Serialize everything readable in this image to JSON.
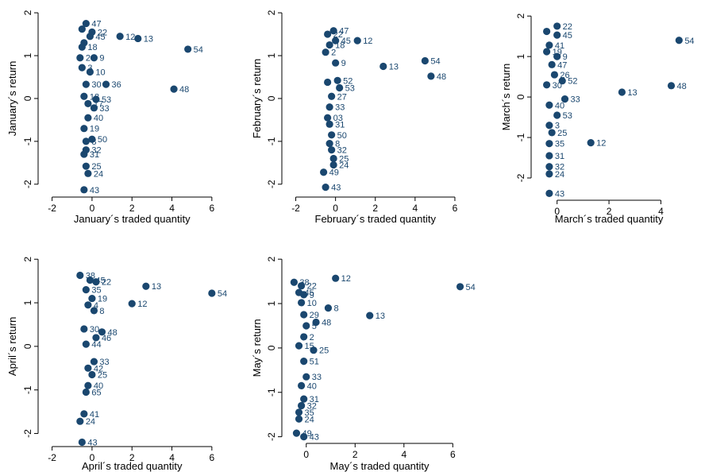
{
  "style": {
    "marker_color": "#1a476f",
    "label_color": "#1a476f",
    "axis_color": "#000000",
    "background": "#ffffff"
  },
  "chart_data": [
    {
      "type": "scatter",
      "xlabel": "January´s traded quantity",
      "ylabel": "January´s return",
      "xlim": [
        -2.7,
        7.0
      ],
      "ylim": [
        -2.3,
        2.15
      ],
      "xticks": [
        -2,
        0,
        2,
        4,
        6
      ],
      "yticks": [
        -2,
        -1,
        0,
        1,
        2
      ],
      "points": [
        {
          "x": -0.3,
          "y": 1.75,
          "label": "47"
        },
        {
          "x": 0.0,
          "y": 1.55,
          "label": "22"
        },
        {
          "x": -0.5,
          "y": 1.62,
          "label": ""
        },
        {
          "x": -0.1,
          "y": 1.45,
          "label": "45"
        },
        {
          "x": -0.4,
          "y": 1.3,
          "label": ""
        },
        {
          "x": -0.5,
          "y": 1.2,
          "label": "18"
        },
        {
          "x": 1.4,
          "y": 1.45,
          "label": "12"
        },
        {
          "x": 2.3,
          "y": 1.4,
          "label": "13"
        },
        {
          "x": 4.8,
          "y": 1.15,
          "label": "54"
        },
        {
          "x": -0.6,
          "y": 0.95,
          "label": "2"
        },
        {
          "x": 0.1,
          "y": 0.95,
          "label": "9"
        },
        {
          "x": -0.5,
          "y": 0.72,
          "label": "3"
        },
        {
          "x": -0.1,
          "y": 0.62,
          "label": "10"
        },
        {
          "x": -0.3,
          "y": 0.33,
          "label": "30"
        },
        {
          "x": 0.7,
          "y": 0.33,
          "label": "36"
        },
        {
          "x": 4.1,
          "y": 0.22,
          "label": "48"
        },
        {
          "x": -0.4,
          "y": 0.05,
          "label": "18"
        },
        {
          "x": 0.2,
          "y": -0.02,
          "label": "53"
        },
        {
          "x": -0.2,
          "y": -0.12,
          "label": "17"
        },
        {
          "x": 0.1,
          "y": -0.22,
          "label": "33"
        },
        {
          "x": -0.2,
          "y": -0.45,
          "label": "40"
        },
        {
          "x": -0.4,
          "y": -0.7,
          "label": "19"
        },
        {
          "x": 0.0,
          "y": -0.95,
          "label": "50"
        },
        {
          "x": -0.3,
          "y": -1.0,
          "label": "8"
        },
        {
          "x": -0.3,
          "y": -1.2,
          "label": "32"
        },
        {
          "x": -0.4,
          "y": -1.3,
          "label": "31"
        },
        {
          "x": -0.3,
          "y": -1.58,
          "label": "25"
        },
        {
          "x": -0.2,
          "y": -1.75,
          "label": "24"
        },
        {
          "x": -0.4,
          "y": -2.13,
          "label": "43"
        }
      ]
    },
    {
      "type": "scatter",
      "xlabel": "February´s traded quantity",
      "ylabel": "February´s return",
      "xlim": [
        -2.7,
        7.0
      ],
      "ylim": [
        -2.3,
        2.15
      ],
      "xticks": [
        -2,
        0,
        2,
        4,
        6
      ],
      "yticks": [
        -2,
        -1,
        0,
        1,
        2
      ],
      "points": [
        {
          "x": -0.1,
          "y": 1.58,
          "label": "47"
        },
        {
          "x": -0.4,
          "y": 1.5,
          "label": "22"
        },
        {
          "x": 0.0,
          "y": 1.35,
          "label": "45"
        },
        {
          "x": -0.3,
          "y": 1.25,
          "label": "18"
        },
        {
          "x": 1.1,
          "y": 1.35,
          "label": "12"
        },
        {
          "x": -0.5,
          "y": 1.08,
          "label": "2"
        },
        {
          "x": 0.0,
          "y": 0.83,
          "label": "9"
        },
        {
          "x": 2.4,
          "y": 0.75,
          "label": "13"
        },
        {
          "x": 4.5,
          "y": 0.88,
          "label": "54"
        },
        {
          "x": 4.8,
          "y": 0.52,
          "label": "48"
        },
        {
          "x": 0.1,
          "y": 0.42,
          "label": "52"
        },
        {
          "x": -0.4,
          "y": 0.38,
          "label": ""
        },
        {
          "x": 0.2,
          "y": 0.25,
          "label": "53"
        },
        {
          "x": -0.2,
          "y": 0.05,
          "label": "27"
        },
        {
          "x": -0.3,
          "y": -0.2,
          "label": "33"
        },
        {
          "x": -0.4,
          "y": -0.45,
          "label": "03"
        },
        {
          "x": -0.3,
          "y": -0.6,
          "label": "31"
        },
        {
          "x": -0.2,
          "y": -0.85,
          "label": "50"
        },
        {
          "x": -0.3,
          "y": -1.05,
          "label": "8"
        },
        {
          "x": -0.2,
          "y": -1.2,
          "label": "32"
        },
        {
          "x": -0.1,
          "y": -1.4,
          "label": "25"
        },
        {
          "x": -0.1,
          "y": -1.55,
          "label": "24"
        },
        {
          "x": -0.6,
          "y": -1.72,
          "label": "49"
        },
        {
          "x": -0.5,
          "y": -2.07,
          "label": "43"
        }
      ]
    },
    {
      "type": "scatter",
      "xlabel": "March´s traded quantity",
      "ylabel": "March´s return",
      "xlim": [
        -1.0,
        5.7
      ],
      "ylim": [
        -2.55,
        2.2
      ],
      "xticks": [
        0,
        2,
        4
      ],
      "yticks": [
        -2,
        -1,
        0,
        1,
        2
      ],
      "points": [
        {
          "x": 0.0,
          "y": 1.75,
          "label": "22"
        },
        {
          "x": -0.4,
          "y": 1.62,
          "label": ""
        },
        {
          "x": 0.0,
          "y": 1.53,
          "label": "45"
        },
        {
          "x": -0.3,
          "y": 1.28,
          "label": "41"
        },
        {
          "x": -0.4,
          "y": 1.12,
          "label": "19"
        },
        {
          "x": 0.0,
          "y": 1.0,
          "label": "9"
        },
        {
          "x": -0.2,
          "y": 0.8,
          "label": "47"
        },
        {
          "x": 4.7,
          "y": 1.4,
          "label": "54"
        },
        {
          "x": -0.1,
          "y": 0.55,
          "label": "26"
        },
        {
          "x": 0.2,
          "y": 0.4,
          "label": "52"
        },
        {
          "x": -0.4,
          "y": 0.3,
          "label": "30"
        },
        {
          "x": 4.4,
          "y": 0.28,
          "label": "48"
        },
        {
          "x": 2.5,
          "y": 0.12,
          "label": "13"
        },
        {
          "x": 0.3,
          "y": -0.05,
          "label": "33"
        },
        {
          "x": -0.3,
          "y": -0.2,
          "label": "40"
        },
        {
          "x": 0.0,
          "y": -0.45,
          "label": "53"
        },
        {
          "x": -0.3,
          "y": -0.7,
          "label": "3"
        },
        {
          "x": -0.2,
          "y": -0.88,
          "label": "25"
        },
        {
          "x": -0.3,
          "y": -1.15,
          "label": "35"
        },
        {
          "x": 1.3,
          "y": -1.13,
          "label": "12"
        },
        {
          "x": -0.3,
          "y": -1.45,
          "label": "31"
        },
        {
          "x": -0.3,
          "y": -1.72,
          "label": "32"
        },
        {
          "x": -0.3,
          "y": -1.9,
          "label": "24"
        },
        {
          "x": -0.3,
          "y": -2.38,
          "label": "43"
        }
      ]
    },
    {
      "type": "scatter",
      "xlabel": "April´s traded quantity",
      "ylabel": "April´s return",
      "xlim": [
        -2.7,
        7.0
      ],
      "ylim": [
        -2.3,
        2.15
      ],
      "xticks": [
        -2,
        0,
        2,
        4,
        6
      ],
      "yticks": [
        -2,
        -1,
        0,
        1,
        2
      ],
      "points": [
        {
          "x": -0.6,
          "y": 1.63,
          "label": "38"
        },
        {
          "x": -0.1,
          "y": 1.52,
          "label": "45"
        },
        {
          "x": 0.2,
          "y": 1.48,
          "label": "22"
        },
        {
          "x": -0.3,
          "y": 1.3,
          "label": "35"
        },
        {
          "x": 2.7,
          "y": 1.38,
          "label": "13"
        },
        {
          "x": 6.0,
          "y": 1.22,
          "label": "54"
        },
        {
          "x": 0.0,
          "y": 1.1,
          "label": "19"
        },
        {
          "x": 2.0,
          "y": 0.98,
          "label": "12"
        },
        {
          "x": -0.2,
          "y": 0.95,
          "label": "4"
        },
        {
          "x": 0.1,
          "y": 0.82,
          "label": "8"
        },
        {
          "x": -0.4,
          "y": 0.4,
          "label": "30"
        },
        {
          "x": 0.5,
          "y": 0.33,
          "label": "48"
        },
        {
          "x": 0.2,
          "y": 0.2,
          "label": "46"
        },
        {
          "x": -0.3,
          "y": 0.05,
          "label": "44"
        },
        {
          "x": 0.1,
          "y": -0.35,
          "label": "33"
        },
        {
          "x": -0.2,
          "y": -0.5,
          "label": "42"
        },
        {
          "x": 0.0,
          "y": -0.65,
          "label": "25"
        },
        {
          "x": -0.2,
          "y": -0.9,
          "label": "40"
        },
        {
          "x": -0.3,
          "y": -1.05,
          "label": "65"
        },
        {
          "x": -0.4,
          "y": -1.55,
          "label": "41"
        },
        {
          "x": -0.6,
          "y": -1.72,
          "label": "24"
        },
        {
          "x": -0.5,
          "y": -2.2,
          "label": "43"
        }
      ]
    },
    {
      "type": "scatter",
      "xlabel": "May´s traded quantity",
      "ylabel": "May´s return",
      "xlim": [
        -1.0,
        6.9
      ],
      "ylim": [
        -2.15,
        2.2
      ],
      "xticks": [
        0,
        2,
        4,
        6
      ],
      "yticks": [
        -2,
        -1,
        0,
        1,
        2
      ],
      "points": [
        {
          "x": -0.5,
          "y": 1.48,
          "label": "38"
        },
        {
          "x": -0.2,
          "y": 1.4,
          "label": "22"
        },
        {
          "x": 1.2,
          "y": 1.57,
          "label": "12"
        },
        {
          "x": 6.3,
          "y": 1.38,
          "label": "54"
        },
        {
          "x": -0.3,
          "y": 1.25,
          "label": "45"
        },
        {
          "x": -0.1,
          "y": 1.2,
          "label": "9"
        },
        {
          "x": -0.2,
          "y": 1.02,
          "label": "10"
        },
        {
          "x": 0.9,
          "y": 0.9,
          "label": "8"
        },
        {
          "x": -0.1,
          "y": 0.75,
          "label": "29"
        },
        {
          "x": 2.6,
          "y": 0.73,
          "label": "13"
        },
        {
          "x": 0.4,
          "y": 0.58,
          "label": "48"
        },
        {
          "x": 0.0,
          "y": 0.5,
          "label": "5"
        },
        {
          "x": -0.1,
          "y": 0.25,
          "label": "2"
        },
        {
          "x": -0.3,
          "y": 0.05,
          "label": "15"
        },
        {
          "x": 0.3,
          "y": -0.05,
          "label": "25"
        },
        {
          "x": -0.1,
          "y": -0.3,
          "label": "51"
        },
        {
          "x": 0.0,
          "y": -0.65,
          "label": "33"
        },
        {
          "x": -0.2,
          "y": -0.85,
          "label": "40"
        },
        {
          "x": -0.1,
          "y": -1.15,
          "label": "31"
        },
        {
          "x": -0.2,
          "y": -1.3,
          "label": "32"
        },
        {
          "x": -0.3,
          "y": -1.45,
          "label": "35"
        },
        {
          "x": -0.3,
          "y": -1.6,
          "label": "24"
        },
        {
          "x": -0.4,
          "y": -1.92,
          "label": "49"
        },
        {
          "x": -0.1,
          "y": -2.0,
          "label": "43"
        }
      ]
    }
  ]
}
